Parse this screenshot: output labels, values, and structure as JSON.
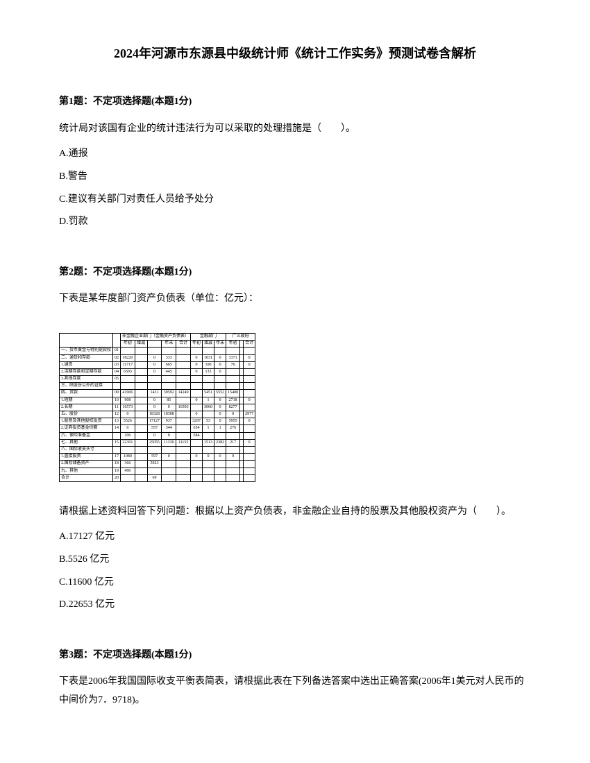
{
  "title": "2024年河源市东源县中级统计师《统计工作实务》预测试卷含解析",
  "q1": {
    "header": "第1题：不定项选择题(本题1分)",
    "text": "统计局对该国有企业的统计违法行为可以采取的处理措施是（　　）。",
    "optA": "A.通报",
    "optB": "B.警告",
    "optC": "C.建议有关部门对责任人员给予处分",
    "optD": "D.罚款"
  },
  "q2": {
    "header": "第2题：不定项选择题(本题1分)",
    "text": "下表是某年度部门资产负债表（单位：亿元）：",
    "followup": "请根据上述资料回答下列问题：根据以上资产负债表，非金融企业自持的股票及其他股权资产为（　　）。",
    "optA": "A.17127 亿元",
    "optB": "B.5526 亿元",
    "optC": "C.11600 亿元",
    "optD": "D.22653 亿元"
  },
  "q3": {
    "header": "第3题：不定项选择题(本题1分)",
    "text": "下表是2006年我国国际收支平衡表简表，请根据此表在下列备选答案中选出正确答案(2006年1美元对人民币的中间价为7．9718)。"
  },
  "table": {
    "headerTop1": "非金融企业部门（金融资产负债表）",
    "headerTop2": "金融部门",
    "headerTop3": "广义政府",
    "sub_nj": "年初",
    "sub_zj": "增减",
    "sub_nm": "年末",
    "sub_hj": "合计",
    "rows": [
      {
        "label": "一、货币黄金与特别提款权",
        "c": "01",
        "v": [
          "",
          "",
          "",
          "",
          "",
          "",
          "",
          "",
          ""
        ]
      },
      {
        "label": "二、通货和存款",
        "c": "02",
        "v": [
          "18220",
          "",
          "0",
          "333",
          "",
          "0",
          "1031",
          "0",
          "3371",
          "",
          "0"
        ]
      },
      {
        "label": "1.通货",
        "c": "03",
        "v": [
          "11717",
          "",
          "0",
          "665",
          "",
          "0",
          "100",
          "0",
          "76",
          "",
          "0"
        ]
      },
      {
        "label": "2.活期存款和定期存款",
        "c": "04",
        "v": [
          "6503",
          "",
          "0",
          "445",
          "",
          "0",
          "133",
          "0",
          "",
          "",
          ""
        ]
      },
      {
        "label": "3.其他存款",
        "c": "05",
        "v": [
          "",
          "",
          "",
          "",
          "",
          "",
          "",
          "",
          "",
          "",
          ""
        ]
      },
      {
        "label": "三、除股份以外的证券",
        "c": "",
        "v": [
          "",
          "",
          "",
          "",
          "",
          "",
          "",
          "",
          "",
          "",
          ""
        ]
      },
      {
        "label": "四、贷款",
        "c": "09",
        "v": [
          "41906",
          "",
          "1431",
          "39592",
          "14249",
          "",
          "5451",
          "5552",
          "15400",
          "",
          ""
        ]
      },
      {
        "label": "1.短期",
        "c": "10",
        "v": [
          "908",
          "",
          "0",
          "85",
          "",
          "0",
          "1",
          "0",
          "2718",
          "",
          "0"
        ]
      },
      {
        "label": "2.长期",
        "c": "11",
        "v": [
          "16573",
          "",
          "0",
          "0",
          "16593",
          "",
          "3060",
          "0",
          "8277",
          "",
          ""
        ]
      },
      {
        "label": "五、股份",
        "c": "12",
        "v": [
          "0",
          "",
          "18328",
          "18308",
          "",
          "0",
          "",
          "0",
          "0",
          "",
          "2977"
        ]
      },
      {
        "label": "1.股票及其他股权投资",
        "c": "13",
        "v": [
          "5526",
          "",
          "17127",
          "937",
          "",
          "3297",
          "53",
          "0",
          "5955",
          "",
          "0"
        ]
      },
      {
        "label": "2.证券投资基金份额",
        "c": "14",
        "v": [
          "0",
          "",
          "557",
          "344",
          "",
          "654",
          "1",
          "1",
          "276",
          "",
          ""
        ]
      },
      {
        "label": "六、保险准备金",
        "c": "",
        "v": [
          "106",
          "",
          "0",
          "0",
          "",
          "584",
          "",
          "",
          "",
          "",
          ""
        ]
      },
      {
        "label": "七、其他",
        "c": "15",
        "v": [
          "22301",
          "",
          "25055",
          "11330",
          "11155",
          "",
          "1513",
          "2382",
          "217",
          "",
          "0"
        ]
      },
      {
        "label": "八、国际收支头寸",
        "c": "",
        "v": [
          "",
          "",
          "",
          "",
          "",
          "",
          "",
          "",
          "",
          "",
          ""
        ]
      },
      {
        "label": "1.直接投资",
        "c": "17",
        "v": [
          "1080",
          "",
          "597",
          "0",
          "",
          "0",
          "0",
          "0",
          "0",
          "",
          ""
        ]
      },
      {
        "label": "2.国际储备资产",
        "c": "18",
        "v": [
          "366",
          "",
          "5923",
          "",
          "",
          "",
          "",
          "",
          "",
          "",
          ""
        ]
      },
      {
        "label": "九、其他",
        "c": "19",
        "v": [
          "490",
          "",
          "",
          "",
          "",
          "",
          "",
          "",
          "",
          "",
          ""
        ]
      },
      {
        "label": "合计",
        "c": "20",
        "v": [
          "",
          "",
          "69",
          "",
          "",
          "",
          "",
          "",
          "",
          "",
          ""
        ]
      }
    ]
  }
}
